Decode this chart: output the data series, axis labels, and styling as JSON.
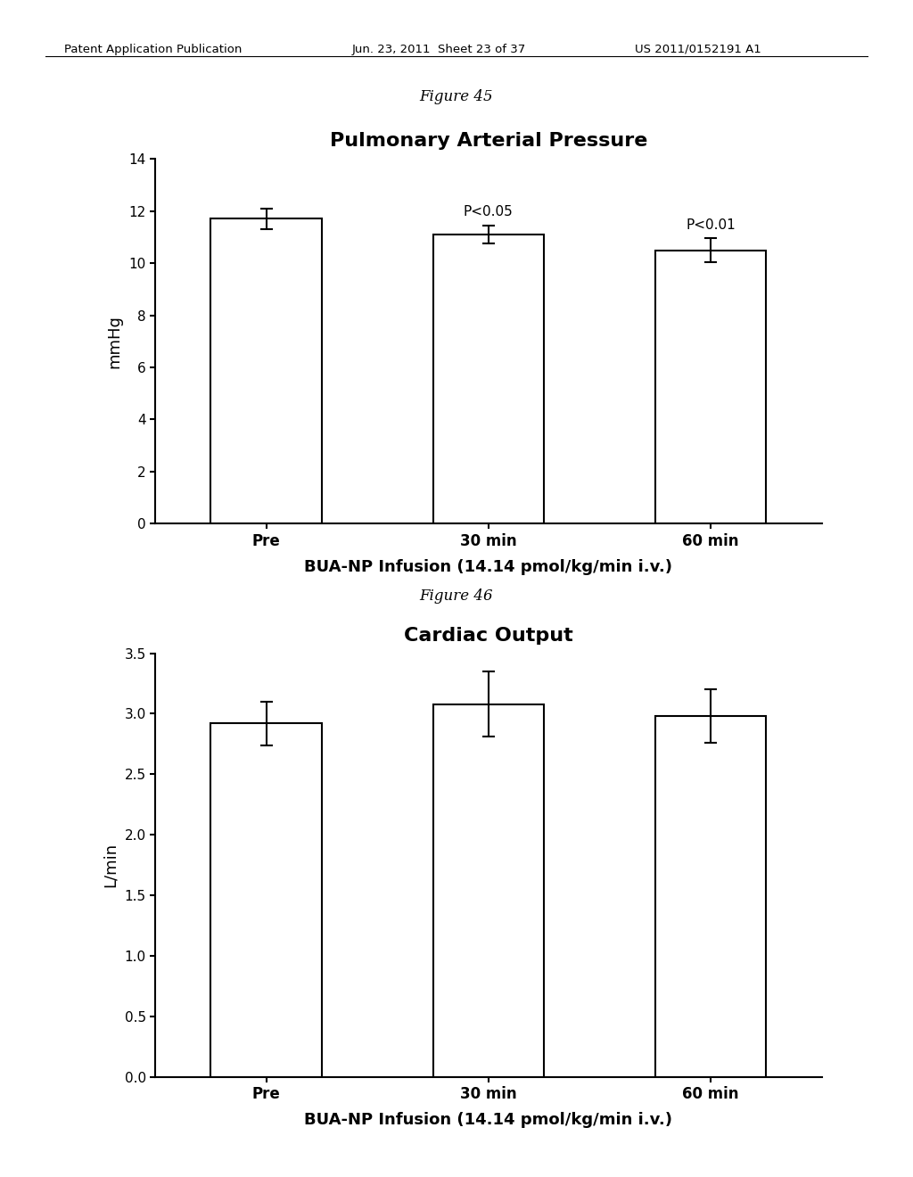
{
  "fig1_title": "Pulmonary Arterial Pressure",
  "fig1_caption": "Figure 45",
  "fig1_categories": [
    "Pre",
    "30 min",
    "60 min"
  ],
  "fig1_values": [
    11.7,
    11.1,
    10.5
  ],
  "fig1_errors": [
    0.4,
    0.35,
    0.45
  ],
  "fig1_ylabel": "mmHg",
  "fig1_xlabel": "BUA-NP Infusion (14.14 pmol/kg/min i.v.)",
  "fig1_ylim": [
    0,
    14
  ],
  "fig1_yticks": [
    0,
    2,
    4,
    6,
    8,
    10,
    12,
    14
  ],
  "fig1_ytick_labels": [
    "0",
    "2",
    "4",
    "6",
    "8",
    "10",
    "12",
    "14"
  ],
  "fig1_annotations": [
    "",
    "P<0.05",
    "P<0.01"
  ],
  "fig2_title": "Cardiac Output",
  "fig2_caption": "Figure 46",
  "fig2_categories": [
    "Pre",
    "30 min",
    "60 min"
  ],
  "fig2_values": [
    2.92,
    3.08,
    2.98
  ],
  "fig2_errors": [
    0.18,
    0.27,
    0.22
  ],
  "fig2_ylabel": "L/min",
  "fig2_xlabel": "BUA-NP Infusion (14.14 pmol/kg/min i.v.)",
  "fig2_ylim": [
    0.0,
    3.5
  ],
  "fig2_yticks": [
    0.0,
    0.5,
    1.0,
    1.5,
    2.0,
    2.5,
    3.0,
    3.5
  ],
  "fig2_ytick_labels": [
    "0.0",
    "0.5",
    "1.0",
    "1.5",
    "2.0",
    "2.5",
    "3.0",
    "3.5"
  ],
  "header_left": "Patent Application Publication",
  "header_mid": "Jun. 23, 2011  Sheet 23 of 37",
  "header_right": "US 2011/0152191 A1",
  "bar_color": "#ffffff",
  "bar_edgecolor": "#000000",
  "bar_width": 0.5,
  "background_color": "#ffffff",
  "text_color": "#000000"
}
